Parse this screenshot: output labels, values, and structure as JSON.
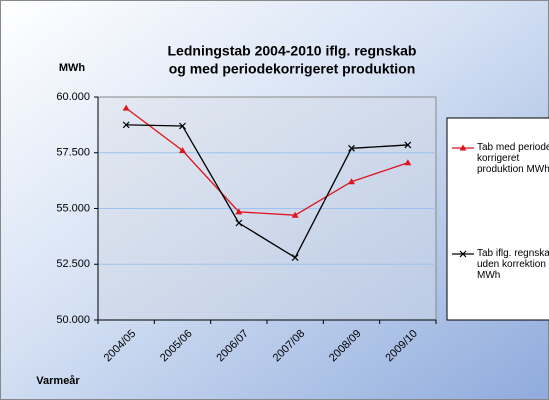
{
  "chart_data": {
    "type": "line",
    "title": [
      "Ledningstab 2004-2010 iflg. regnskab",
      "og med periodekorrigeret  produktion"
    ],
    "y_label": "MWh",
    "x_label": "Varmeår",
    "categories": [
      "2004/05",
      "2005/06",
      "2006/07",
      "2007/08",
      "2008/09",
      "2009/10"
    ],
    "series": [
      {
        "name": "Tab med periode-korrigeret produktion MWh",
        "color": "#e0141e",
        "marker": "triangle",
        "values": [
          59500,
          57600,
          54850,
          54700,
          56200,
          57050
        ]
      },
      {
        "name": "Tab iflg. regnskab uden korrektion MWh",
        "color": "#000000",
        "marker": "x",
        "values": [
          58750,
          58700,
          54350,
          52800,
          57700,
          57850
        ]
      }
    ],
    "ylim": [
      50000,
      60000
    ],
    "yticks": [
      {
        "value": 50000,
        "label": "50.000"
      },
      {
        "value": 52500,
        "label": "52.500"
      },
      {
        "value": 55000,
        "label": "55.000"
      },
      {
        "value": 57500,
        "label": "57.500"
      },
      {
        "value": 60000,
        "label": "60.000"
      }
    ],
    "grid": true,
    "legend": "right"
  }
}
